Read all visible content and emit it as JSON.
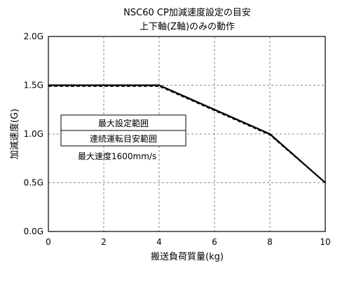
{
  "chart_data": {
    "type": "line",
    "title": "NSC60 CP加減速度設定の目安",
    "subtitle": "上下軸(Z軸)のみの動作",
    "xlabel": "搬送負荷質量(kg)",
    "ylabel": "加減速度(G)",
    "xlim": [
      0,
      10
    ],
    "ylim": [
      0.0,
      2.0
    ],
    "x_ticks": [
      0,
      2,
      4,
      6,
      8,
      10
    ],
    "x_tick_labels": [
      "0",
      "2",
      "4",
      "6",
      "8",
      "10"
    ],
    "y_ticks": [
      0.0,
      0.5,
      1.0,
      1.5,
      2.0
    ],
    "y_tick_labels": [
      "0.0G",
      "0.5G",
      "1.0G",
      "1.5G",
      "2.0G"
    ],
    "grid": true,
    "legend_position": "middle-left",
    "series": [
      {
        "name": "最大設定範囲",
        "style": "solid",
        "color": "#000000",
        "x": [
          0,
          4,
          8,
          10
        ],
        "y": [
          1.5,
          1.5,
          1.0,
          0.5
        ]
      },
      {
        "name": "連続運転目安範囲",
        "style": "dashed",
        "color": "#000000",
        "x": [
          0,
          4,
          8,
          10
        ],
        "y": [
          1.49,
          1.49,
          0.99,
          0.5
        ]
      }
    ],
    "annotations": [
      "最大速度1600mm/s"
    ]
  }
}
